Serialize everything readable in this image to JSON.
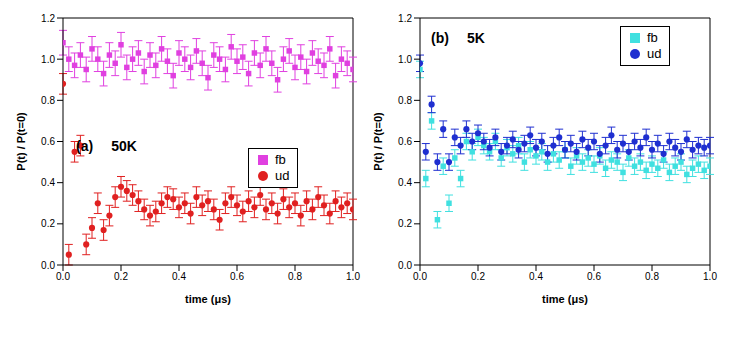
{
  "chart_data": [
    {
      "type": "scatter",
      "annotations": [
        "(a)",
        "50K"
      ],
      "x_label": "time (μs)",
      "y_label": "P(t) / P(t=0)",
      "xlim": [
        0,
        1
      ],
      "ylim": [
        0,
        1.2
      ],
      "xticks": [
        {
          "value": 0,
          "label": "0.0"
        },
        0.2,
        0.4,
        0.6,
        0.8,
        {
          "value": 1,
          "label": "1.0"
        }
      ],
      "yticks": [
        {
          "value": 0,
          "label": "0.0"
        },
        0.2,
        0.4,
        0.6,
        0.8,
        {
          "value": 1,
          "label": "1.0"
        },
        1.2
      ],
      "legend": "center right",
      "x": [
        0,
        0.02,
        0.04,
        0.06,
        0.08,
        0.1,
        0.12,
        0.14,
        0.16,
        0.18,
        0.2,
        0.22,
        0.24,
        0.26,
        0.28,
        0.3,
        0.32,
        0.34,
        0.36,
        0.38,
        0.4,
        0.42,
        0.44,
        0.46,
        0.48,
        0.5,
        0.52,
        0.54,
        0.56,
        0.58,
        0.6,
        0.62,
        0.64,
        0.66,
        0.68,
        0.7,
        0.72,
        0.74,
        0.76,
        0.78,
        0.8,
        0.82,
        0.84,
        0.86,
        0.88,
        0.9,
        0.92,
        0.94,
        0.96,
        0.98,
        1
      ],
      "series": [
        {
          "name": "fb",
          "color": "#e040e0",
          "marker": "square",
          "error": 0.06,
          "values": [
            1.08,
            1.0,
            0.97,
            1.02,
            0.95,
            1.05,
            1.0,
            0.93,
            1.02,
            0.98,
            1.07,
            0.96,
            1.0,
            1.03,
            0.94,
            1.02,
            0.97,
            1.05,
            0.99,
            0.92,
            1.03,
            1.0,
            0.96,
            1.04,
            0.98,
            0.91,
            1.02,
            1.0,
            0.95,
            1.06,
            0.99,
            1.01,
            0.93,
            1.03,
            0.97,
            1.05,
            0.98,
            0.9,
            1.0,
            1.04,
            0.96,
            1.01,
            0.94,
            1.03,
            0.99,
            0.97,
            1.05,
            0.92,
            1.0,
            0.98,
            0.95
          ]
        },
        {
          "name": "ud",
          "color": "#e02020",
          "marker": "circle",
          "error": 0.05,
          "values": [
            0.88,
            0.05,
            0.55,
            0.58,
            0.1,
            0.18,
            0.3,
            0.17,
            0.24,
            0.33,
            0.38,
            0.36,
            0.34,
            0.31,
            0.27,
            0.24,
            0.26,
            0.3,
            0.33,
            0.32,
            0.28,
            0.3,
            0.25,
            0.33,
            0.29,
            0.31,
            0.27,
            0.22,
            0.3,
            0.33,
            0.29,
            0.26,
            0.31,
            0.28,
            0.34,
            0.27,
            0.3,
            0.25,
            0.32,
            0.28,
            0.3,
            0.24,
            0.31,
            0.27,
            0.33,
            0.29,
            0.25,
            0.31,
            0.28,
            0.3,
            0.27
          ]
        }
      ]
    },
    {
      "type": "scatter",
      "annotations": [
        "(b)",
        "5K"
      ],
      "x_label": "time (μs)",
      "y_label": "P(t) / P(t=0)",
      "xlim": [
        0,
        1
      ],
      "ylim": [
        0,
        1.2
      ],
      "xticks": [
        {
          "value": 0,
          "label": "0.0"
        },
        0.2,
        0.4,
        0.6,
        0.8,
        {
          "value": 1,
          "label": "1.0"
        }
      ],
      "yticks": [
        {
          "value": 0,
          "label": "0.0"
        },
        0.2,
        0.4,
        0.6,
        0.8,
        {
          "value": 1,
          "label": "1.0"
        },
        1.2
      ],
      "legend": "upper right",
      "x": [
        0,
        0.02,
        0.04,
        0.06,
        0.08,
        0.1,
        0.12,
        0.14,
        0.16,
        0.18,
        0.2,
        0.22,
        0.24,
        0.26,
        0.28,
        0.3,
        0.32,
        0.34,
        0.36,
        0.38,
        0.4,
        0.42,
        0.44,
        0.46,
        0.48,
        0.5,
        0.52,
        0.54,
        0.56,
        0.58,
        0.6,
        0.62,
        0.64,
        0.66,
        0.68,
        0.7,
        0.72,
        0.74,
        0.76,
        0.78,
        0.8,
        0.82,
        0.84,
        0.86,
        0.88,
        0.9,
        0.92,
        0.94,
        0.96,
        0.98,
        1
      ],
      "series": [
        {
          "name": "fb",
          "color": "#40e0e0",
          "marker": "square",
          "error": 0.04,
          "values": [
            0.95,
            0.42,
            0.7,
            0.22,
            0.48,
            0.3,
            0.52,
            0.42,
            0.6,
            0.55,
            0.62,
            0.58,
            0.55,
            0.6,
            0.52,
            0.57,
            0.54,
            0.58,
            0.5,
            0.56,
            0.53,
            0.55,
            0.5,
            0.54,
            0.51,
            0.56,
            0.48,
            0.53,
            0.5,
            0.52,
            0.49,
            0.53,
            0.47,
            0.51,
            0.5,
            0.45,
            0.52,
            0.48,
            0.5,
            0.46,
            0.49,
            0.47,
            0.51,
            0.45,
            0.48,
            0.5,
            0.44,
            0.47,
            0.49,
            0.46,
            0.48
          ]
        },
        {
          "name": "ud",
          "color": "#1f2fd0",
          "marker": "circle",
          "error": 0.04,
          "values": [
            0.98,
            0.55,
            0.78,
            0.5,
            0.66,
            0.5,
            0.62,
            0.58,
            0.66,
            0.6,
            0.64,
            0.6,
            0.57,
            0.62,
            0.55,
            0.58,
            0.61,
            0.56,
            0.59,
            0.63,
            0.57,
            0.6,
            0.54,
            0.58,
            0.62,
            0.56,
            0.59,
            0.55,
            0.61,
            0.57,
            0.6,
            0.54,
            0.58,
            0.63,
            0.56,
            0.59,
            0.55,
            0.6,
            0.57,
            0.62,
            0.56,
            0.59,
            0.54,
            0.6,
            0.57,
            0.55,
            0.61,
            0.56,
            0.58,
            0.57,
            0.58
          ]
        }
      ]
    }
  ]
}
